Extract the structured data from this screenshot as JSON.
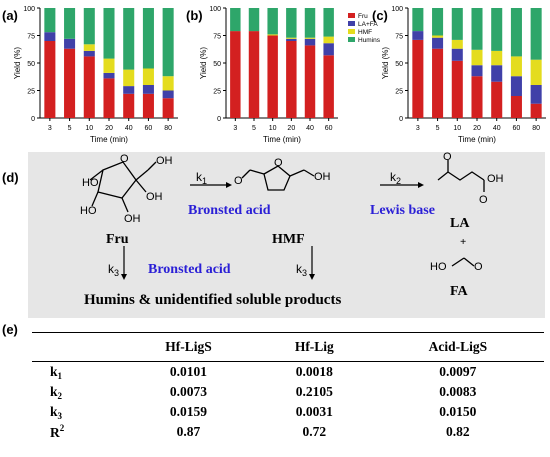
{
  "panels": {
    "a": "(a)",
    "b": "(b)",
    "c": "(c)",
    "d": "(d)",
    "e": "(e)"
  },
  "chart_data": [
    {
      "type": "bar",
      "stacked": true,
      "panel": "(a)",
      "categories": [
        "3",
        "5",
        "10",
        "20",
        "40",
        "60",
        "80"
      ],
      "xlabel": "Time (min)",
      "ylabel": "Yield (%)",
      "ylim": [
        0,
        100
      ],
      "yticks": [
        "0",
        "25",
        "50",
        "75",
        "100"
      ],
      "series": [
        {
          "name": "Fru",
          "color": "#d32020",
          "values": [
            70,
            63,
            56,
            36,
            22,
            22,
            18
          ]
        },
        {
          "name": "LA+FA",
          "color": "#4040a8",
          "values": [
            8,
            9,
            5,
            5,
            7,
            8,
            7
          ]
        },
        {
          "name": "HMF",
          "color": "#e4dc1e",
          "values": [
            0,
            0,
            6,
            13,
            15,
            15,
            13
          ]
        },
        {
          "name": "Humins",
          "color": "#2ea66a",
          "values": [
            22,
            28,
            33,
            46,
            56,
            55,
            62
          ]
        }
      ]
    },
    {
      "type": "bar",
      "stacked": true,
      "panel": "(b)",
      "categories": [
        "3",
        "5",
        "10",
        "20",
        "40",
        "60"
      ],
      "xlabel": "Time (min)",
      "ylabel": "Yield (%)",
      "ylim": [
        0,
        100
      ],
      "yticks": [
        "0",
        "25",
        "50",
        "75",
        "100"
      ],
      "legend_position": "top-right",
      "series": [
        {
          "name": "Fru",
          "color": "#d32020",
          "values": [
            79,
            79,
            75,
            70,
            66,
            57
          ]
        },
        {
          "name": "LA+FA",
          "color": "#4040a8",
          "values": [
            0,
            0,
            0,
            2,
            6,
            11
          ]
        },
        {
          "name": "HMF",
          "color": "#e4dc1e",
          "values": [
            0,
            0,
            1,
            1,
            1,
            6
          ]
        },
        {
          "name": "Humins",
          "color": "#2ea66a",
          "values": [
            21,
            21,
            24,
            27,
            27,
            26
          ]
        }
      ]
    },
    {
      "type": "bar",
      "stacked": true,
      "panel": "(c)",
      "categories": [
        "3",
        "5",
        "10",
        "20",
        "40",
        "60",
        "80"
      ],
      "xlabel": "Time (min)",
      "ylabel": "Yield (%)",
      "ylim": [
        0,
        100
      ],
      "yticks": [
        "0",
        "25",
        "50",
        "75",
        "100"
      ],
      "series": [
        {
          "name": "Fru",
          "color": "#d32020",
          "values": [
            71,
            63,
            52,
            38,
            33,
            20,
            13
          ]
        },
        {
          "name": "LA+FA",
          "color": "#4040a8",
          "values": [
            8,
            10,
            11,
            10,
            15,
            18,
            17
          ]
        },
        {
          "name": "HMF",
          "color": "#e4dc1e",
          "values": [
            0,
            2,
            8,
            14,
            13,
            18,
            23
          ]
        },
        {
          "name": "Humins",
          "color": "#2ea66a",
          "values": [
            21,
            25,
            29,
            38,
            39,
            44,
            47
          ]
        }
      ]
    }
  ],
  "scheme": {
    "fru_label": "Fru",
    "hmf_label": "HMF",
    "la_label": "LA",
    "fa_label": "FA",
    "plus": "+",
    "k1": "k",
    "k1_sub": "1",
    "k2": "k",
    "k2_sub": "2",
    "k3a": "k",
    "k3a_sub": "3",
    "k3b": "k",
    "k3b_sub": "3",
    "acid1": "Bronsted acid",
    "base": "Lewis base",
    "acid2": "Bronsted acid",
    "humins_text": "Humins &  unidentified soluble products"
  },
  "table": {
    "headers": [
      "",
      "Hf-LigS",
      "Hf-Lig",
      "Acid-LigS"
    ],
    "rows": [
      {
        "p": "k",
        "sub": "1",
        "sup": "",
        "v": [
          "0.0101",
          "0.0018",
          "0.0097"
        ]
      },
      {
        "p": "k",
        "sub": "2",
        "sup": "",
        "v": [
          "0.0073",
          "0.2105",
          "0.0083"
        ]
      },
      {
        "p": "k",
        "sub": "3",
        "sup": "",
        "v": [
          "0.0159",
          "0.0031",
          "0.0150"
        ]
      },
      {
        "p": "R",
        "sub": "",
        "sup": "2",
        "v": [
          "0.87",
          "0.72",
          "0.82"
        ]
      }
    ]
  }
}
